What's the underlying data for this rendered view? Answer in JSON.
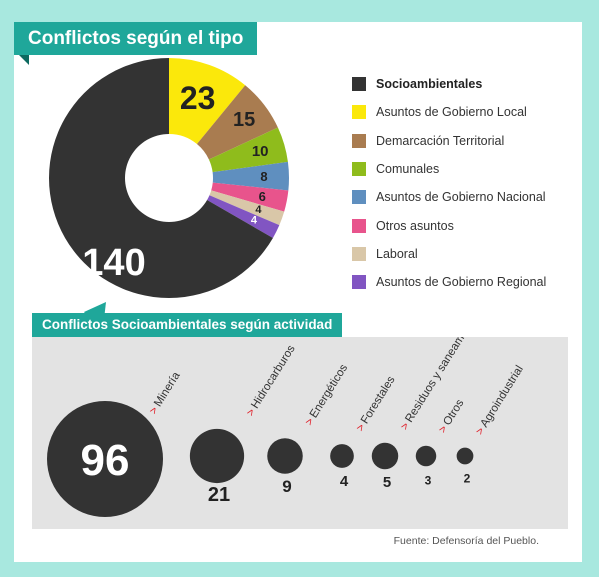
{
  "title": "Conflictos según el tipo",
  "donut_labels_color": "#ffffff",
  "chart_data": [
    {
      "type": "pie",
      "title": "Conflictos según el tipo",
      "categories": [
        "Socioambientales",
        "Asuntos de Gobierno Local",
        "Demarcación Territorial",
        "Comunales",
        "Asuntos de Gobierno Nacional",
        "Otros asuntos",
        "Laboral",
        "Asuntos de Gobierno Regional"
      ],
      "values": [
        140,
        23,
        15,
        10,
        8,
        6,
        4,
        4
      ],
      "colors": [
        "#333333",
        "#fbe80b",
        "#a97c50",
        "#8fbc1c",
        "#5f8fbf",
        "#e8548c",
        "#d9c7a8",
        "#8155c2"
      ],
      "legend_position": "right"
    },
    {
      "type": "bubble",
      "title": "Conflictos Socioambientales según actividad",
      "categories": [
        "Minería",
        "Hidrocarburos",
        "Energéticos",
        "Forestales",
        "Residuos y saneamiento",
        "Otros",
        "Agroindustrial"
      ],
      "values": [
        96,
        21,
        9,
        4,
        5,
        3,
        2
      ],
      "arrow_glyph": ">"
    }
  ],
  "source": "Fuente: Defensoría del Pueblo."
}
